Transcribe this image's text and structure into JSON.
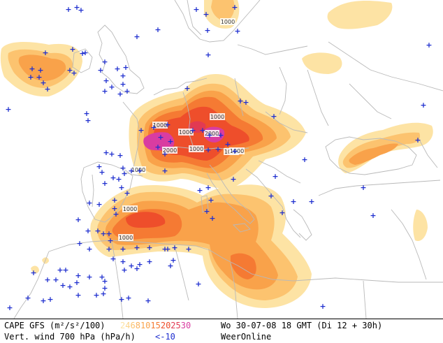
{
  "map": {
    "iso_labels": [
      "1000",
      "1000",
      "1000",
      "2000",
      "2000",
      "1000",
      "1000",
      "1000",
      "1000",
      "1000",
      "1000",
      "1000"
    ],
    "colors": {
      "background": "#ffffff",
      "border_lines": "#b9b9b9",
      "cape_light": "#fde3a4",
      "cape_2": "#fcc36f",
      "cape_3": "#f9a24a",
      "cape_4": "#f57a33",
      "cape_5": "#ee4e2b",
      "cape_6": "#e23a52",
      "cape_7": "#d93ca1",
      "wind_marker": "#1f2fcf"
    },
    "wind_marker_symbol": "+"
  },
  "legend": {
    "parameter": "CAPE GFS (m²/s²/100)",
    "scale_values": [
      "2",
      "4",
      "6",
      "8",
      "10",
      "15",
      "20",
      "25",
      "30"
    ],
    "scale_colors": [
      "#fde3a4",
      "#fcd48a",
      "#fcc36f",
      "#fab05b",
      "#f9a24a",
      "#f57a33",
      "#ee4e2b",
      "#e23a52",
      "#d93ca1"
    ],
    "valid_time": "Wo 30-07-08 18 GMT (Di 12 + 30h)",
    "vertical_wind": "Vert. wind 700 hPa (hPa/h)",
    "negative_threshold": "<-10",
    "source": "WeerOnline"
  }
}
